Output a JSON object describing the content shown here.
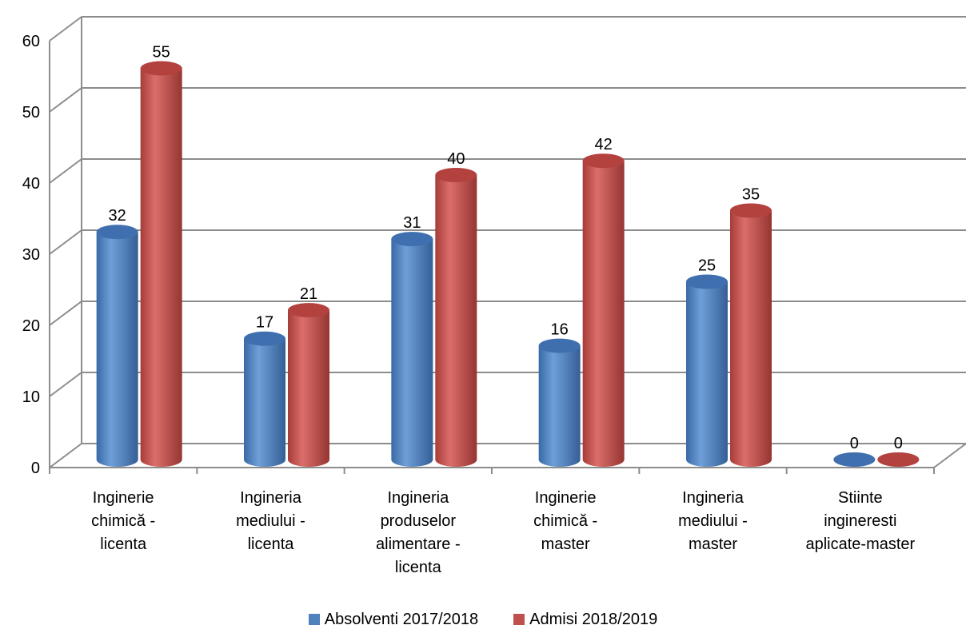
{
  "chart_data": {
    "type": "bar",
    "style": "3d-cylinder",
    "categories": [
      [
        "Inginerie",
        "chimică -",
        "licenta"
      ],
      [
        "Ingineria",
        "mediului -",
        "licenta"
      ],
      [
        "Ingineria",
        "produselor",
        "alimentare -",
        "licenta"
      ],
      [
        "Inginerie",
        "chimică -",
        "master"
      ],
      [
        "Ingineria",
        "mediului -",
        "master"
      ],
      [
        "Stiinte",
        "ingineresti",
        "aplicate-master"
      ]
    ],
    "series": [
      {
        "name": "Absolventi 2017/2018",
        "color": "#4f81bd",
        "values": [
          32,
          17,
          31,
          16,
          25,
          0
        ]
      },
      {
        "name": "Admisi 2018/2019",
        "color": "#c0504d",
        "values": [
          55,
          21,
          40,
          42,
          35,
          0
        ]
      }
    ],
    "yticks": [
      "0",
      "10",
      "20",
      "30",
      "40",
      "50",
      "60"
    ],
    "ylim": [
      0,
      60
    ],
    "grid": true,
    "legend_position": "bottom"
  }
}
